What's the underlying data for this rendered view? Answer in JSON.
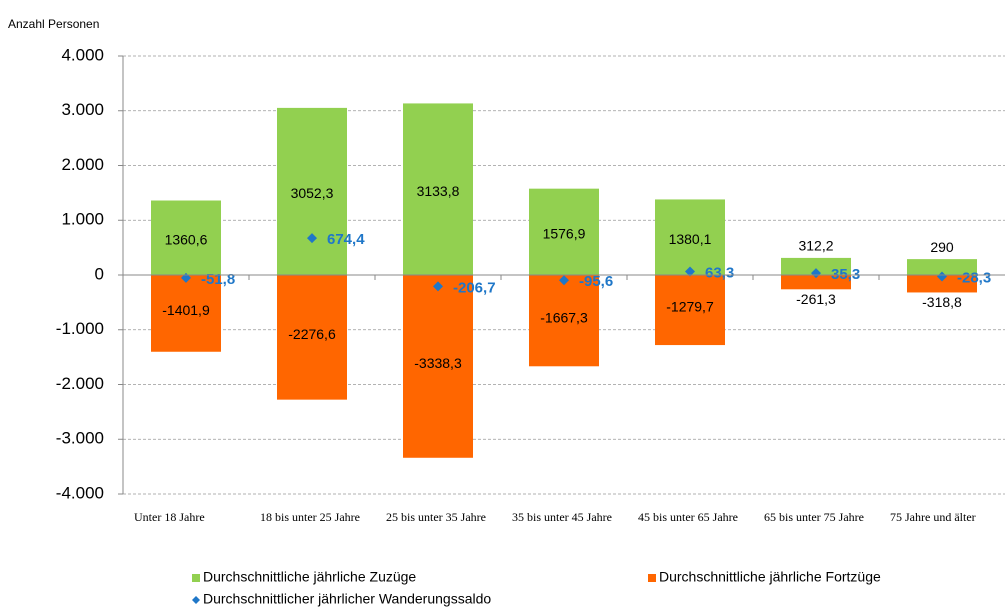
{
  "chart_data": {
    "type": "bar",
    "y_axis_label": "Anzahl Personen",
    "categories": [
      "Unter 18 Jahre",
      "18 bis unter 25 Jahre",
      "25 bis unter 35 Jahre",
      "35 bis unter 45 Jahre",
      "45 bis unter 65 Jahre",
      "65 bis unter 75 Jahre",
      "75 Jahre und älter"
    ],
    "series": [
      {
        "name": "Durchschnittliche jährliche Zuzüge",
        "color": "#92d050",
        "type": "bar",
        "values": [
          1360.6,
          3052.3,
          3133.8,
          1576.9,
          1380.1,
          312.2,
          290
        ],
        "value_labels": [
          "1360,6",
          "3052,3",
          "3133,8",
          "1576,9",
          "1380,1",
          "312,2",
          "290"
        ]
      },
      {
        "name": "Durchschnittliche jährliche Fortzüge",
        "color": "#ff6600",
        "type": "bar",
        "values": [
          -1401.9,
          -2276.6,
          -3338.3,
          -1667.3,
          -1279.7,
          -261.3,
          -318.8
        ],
        "value_labels": [
          "-1401,9",
          "-2276,6",
          "-3338,3",
          "-1667,3",
          "-1279,7",
          "-261,3",
          "-318,8"
        ]
      },
      {
        "name": "Durchschnittlicher jährlicher Wanderungssaldo",
        "color": "#1f77c8",
        "type": "scatter",
        "values": [
          -51.8,
          674.4,
          -206.7,
          -95.6,
          63.3,
          35.3,
          -28.3
        ],
        "value_labels": [
          "-51,8",
          "674,4",
          "-206,7",
          "-95,6",
          "63,3",
          "35,3",
          "-28,3"
        ]
      }
    ],
    "ylim": [
      -4000,
      4000
    ],
    "yticks": [
      {
        "value": -4000,
        "label": "-4.000"
      },
      {
        "value": -3000,
        "label": "-3.000"
      },
      {
        "value": -2000,
        "label": "-2.000"
      },
      {
        "value": -1000,
        "label": "-1.000"
      },
      0,
      {
        "value": 1000,
        "label": "1.000"
      },
      {
        "value": 2000,
        "label": "2.000"
      },
      {
        "value": 3000,
        "label": "3.000"
      },
      {
        "value": 4000,
        "label": "4.000"
      }
    ],
    "grid": true
  }
}
